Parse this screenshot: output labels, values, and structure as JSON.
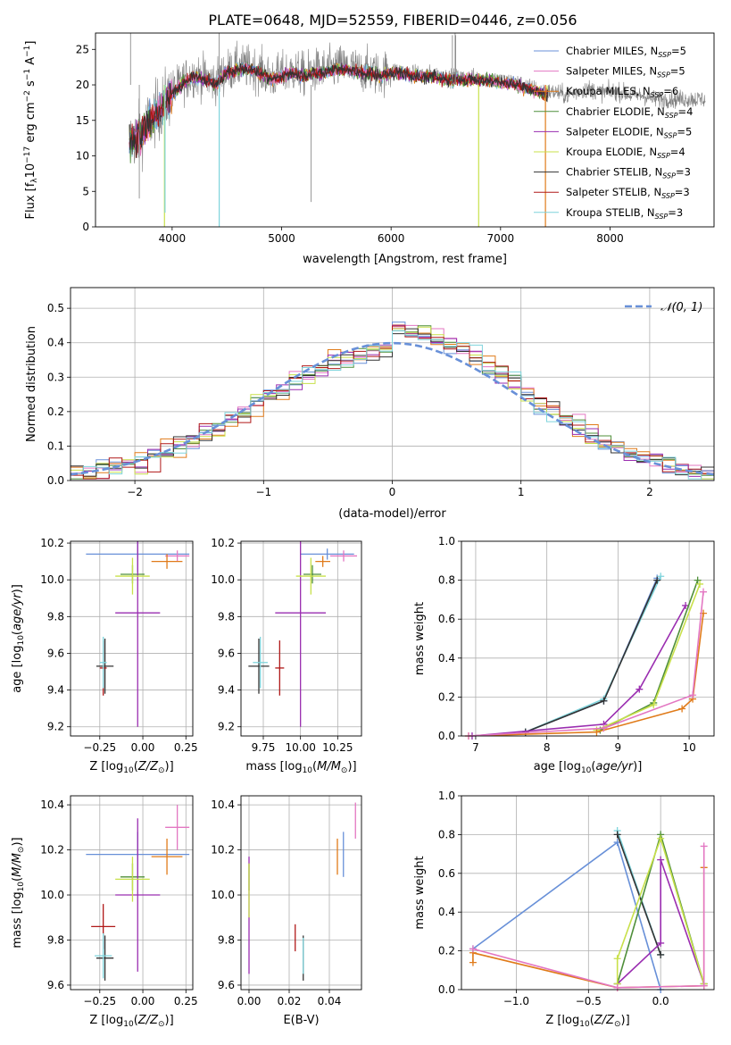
{
  "title": "PLATE=0648, MJD=52559, FIBERID=0446, z=0.056",
  "legend_spectrum": [
    {
      "label": "Chabrier MILES, N",
      "sub": "SSP",
      "suffix": "=5",
      "color": "#6890d8"
    },
    {
      "label": "Salpeter MILES, N",
      "sub": "SSP",
      "suffix": "=5",
      "color": "#e377c2"
    },
    {
      "label": "Kroupa MILES, N",
      "sub": "SSP",
      "suffix": "=6",
      "color": "#e07b1a"
    },
    {
      "label": "Chabrier ELODIE, N",
      "sub": "SSP",
      "suffix": "=4",
      "color": "#4f8f3a"
    },
    {
      "label": "Salpeter ELODIE, N",
      "sub": "SSP",
      "suffix": "=5",
      "color": "#9a2db0"
    },
    {
      "label": "Kroupa ELODIE, N",
      "sub": "SSP",
      "suffix": "=4",
      "color": "#c8e04a"
    },
    {
      "label": "Chabrier STELIB, N",
      "sub": "SSP",
      "suffix": "=3",
      "color": "#333333"
    },
    {
      "label": "Salpeter STELIB, N",
      "sub": "SSP",
      "suffix": "=3",
      "color": "#b01818"
    },
    {
      "label": "Kroupa STELIB, N",
      "sub": "SSP",
      "suffix": "=3",
      "color": "#7fd4dc"
    }
  ],
  "legend_normal": "𝒩(0, 1)",
  "chart_data": [
    {
      "id": "spectrum",
      "type": "line",
      "xlabel": "wavelength [Angstrom, rest frame]",
      "ylabel": "Flux [f_λ 10^-17 erg cm^-2 s^-1 A^-1]",
      "xlim": [
        3300,
        8950
      ],
      "ylim": [
        0,
        27.3
      ],
      "xticks": [
        4000,
        5000,
        6000,
        7000,
        8000
      ],
      "yticks": [
        0,
        5,
        10,
        15,
        20,
        25
      ],
      "data_wavelength": [
        3600,
        3700,
        3800,
        3900,
        4000,
        4100,
        4200,
        4300,
        4400,
        4500,
        4600,
        4700,
        4800,
        4900,
        5000,
        5100,
        5200,
        5300,
        5400,
        5500,
        5600,
        5700,
        5800,
        5900,
        6000,
        6100,
        6200,
        6300,
        6400,
        6500,
        6600,
        6700,
        6800,
        6900,
        7000,
        7100,
        7200,
        7300,
        7400,
        7500,
        7600,
        7700,
        7800,
        7900,
        8000,
        8100,
        8200,
        8300,
        8400,
        8500,
        8600,
        8800
      ],
      "data_flux": [
        12,
        13,
        15,
        17,
        19,
        20.5,
        21.5,
        21,
        20.5,
        22,
        22.5,
        22.5,
        22,
        21,
        21.5,
        22,
        21.5,
        22,
        22,
        22.5,
        22.5,
        22,
        22,
        21.5,
        22,
        22,
        21.5,
        21.5,
        21.5,
        21,
        21,
        21,
        21,
        21,
        20.5,
        20.5,
        20,
        19.5,
        19,
        19,
        18.5,
        19,
        19.5,
        19,
        19,
        19,
        18.5,
        18.5,
        18,
        18,
        18,
        18
      ],
      "grid": false
    },
    {
      "id": "residuals",
      "type": "histogram",
      "xlabel": "(data-model)/error",
      "ylabel": "Normed distribution",
      "xlim": [
        -2.5,
        2.5
      ],
      "ylim": [
        0,
        0.56
      ],
      "xticks": [
        -2,
        -1,
        0,
        1,
        2
      ],
      "yticks": [
        0.0,
        0.1,
        0.2,
        0.3,
        0.4,
        0.5
      ],
      "bin_width": 0.1,
      "reference_curve": "standard normal N(0,1)",
      "grid": true
    },
    {
      "id": "age_vs_Z",
      "type": "errorbar",
      "xlabel": "Z [log10(Z/Z☉)]",
      "ylabel": "age  [log10(age/yr)]",
      "xlim": [
        -0.42,
        0.29
      ],
      "ylim": [
        9.15,
        10.21
      ],
      "xticks": [
        -0.25,
        0.0,
        0.25
      ],
      "yticks": [
        9.2,
        9.4,
        9.6,
        9.8,
        10.0,
        10.2
      ],
      "points": [
        {
          "x": -0.03,
          "xerr": 0.3,
          "y": 10.14,
          "yerr": 0.1,
          "color": "#6890d8"
        },
        {
          "x": 0.2,
          "xerr": 0.07,
          "y": 10.13,
          "yerr": 0.03,
          "color": "#e377c2"
        },
        {
          "x": 0.14,
          "xerr": 0.09,
          "y": 10.1,
          "yerr": 0.04,
          "color": "#e07b1a"
        },
        {
          "x": -0.06,
          "xerr": 0.07,
          "y": 10.03,
          "yerr": 0.05,
          "color": "#4f8f3a"
        },
        {
          "x": -0.03,
          "xerr": 0.13,
          "y": 9.82,
          "yerr": 0.62,
          "color": "#9a2db0"
        },
        {
          "x": -0.06,
          "xerr": 0.1,
          "y": 10.02,
          "yerr": 0.1,
          "color": "#c8e04a"
        },
        {
          "x": -0.22,
          "xerr": 0.05,
          "y": 9.53,
          "yerr": 0.15,
          "color": "#333333"
        },
        {
          "x": -0.23,
          "xerr": 0.02,
          "y": 9.52,
          "yerr": 0.15,
          "color": "#b01818"
        },
        {
          "x": -0.23,
          "xerr": 0.02,
          "y": 9.55,
          "yerr": 0.14,
          "color": "#7fd4dc"
        }
      ],
      "grid": true
    },
    {
      "id": "age_vs_mass",
      "type": "errorbar",
      "xlabel": "mass [log10(M/M☉)]",
      "ylabel": "",
      "xlim": [
        9.6,
        10.41
      ],
      "ylim": [
        9.15,
        10.21
      ],
      "xticks": [
        9.75,
        10.0,
        10.25
      ],
      "yticks": [
        9.2,
        9.4,
        9.6,
        9.8,
        10.0,
        10.2
      ],
      "points": [
        {
          "x": 10.18,
          "xerr": 0.18,
          "y": 10.14,
          "yerr": 0.03,
          "color": "#6890d8"
        },
        {
          "x": 10.29,
          "xerr": 0.09,
          "y": 10.13,
          "yerr": 0.03,
          "color": "#e377c2"
        },
        {
          "x": 10.15,
          "xerr": 0.05,
          "y": 10.1,
          "yerr": 0.03,
          "color": "#e07b1a"
        },
        {
          "x": 10.08,
          "xerr": 0.06,
          "y": 10.03,
          "yerr": 0.05,
          "color": "#4f8f3a"
        },
        {
          "x": 10.0,
          "xerr": 0.17,
          "y": 9.82,
          "yerr": 0.62,
          "color": "#9a2db0"
        },
        {
          "x": 10.07,
          "xerr": 0.1,
          "y": 10.02,
          "yerr": 0.1,
          "color": "#c8e04a"
        },
        {
          "x": 9.72,
          "xerr": 0.07,
          "y": 9.53,
          "yerr": 0.15,
          "color": "#333333"
        },
        {
          "x": 9.86,
          "xerr": 0.03,
          "y": 9.52,
          "yerr": 0.15,
          "color": "#b01818"
        },
        {
          "x": 9.73,
          "xerr": 0.05,
          "y": 9.55,
          "yerr": 0.14,
          "color": "#7fd4dc"
        }
      ],
      "grid": true
    },
    {
      "id": "weight_vs_age",
      "type": "line",
      "xlabel": "age  [log10(age/yr)]",
      "ylabel": "mass weight",
      "xlim": [
        6.8,
        10.35
      ],
      "ylim": [
        0,
        1.0
      ],
      "xticks": [
        7,
        8,
        9,
        10
      ],
      "yticks": [
        0.0,
        0.2,
        0.4,
        0.6,
        0.8,
        1.0
      ],
      "series": [
        {
          "color": "#6890d8",
          "x": [
            7.7,
            8.8,
            9.55
          ],
          "y": [
            0.02,
            0.18,
            0.81
          ]
        },
        {
          "color": "#7fd4dc",
          "x": [
            7.7,
            8.8,
            9.6
          ],
          "y": [
            0.02,
            0.19,
            0.82
          ]
        },
        {
          "color": "#333333",
          "x": [
            7.7,
            8.8,
            9.55
          ],
          "y": [
            0.02,
            0.18,
            0.8
          ]
        },
        {
          "color": "#9a2db0",
          "x": [
            6.95,
            8.8,
            9.3,
            9.95
          ],
          "y": [
            0.0,
            0.06,
            0.24,
            0.67
          ]
        },
        {
          "color": "#4f8f3a",
          "x": [
            8.75,
            9.5,
            10.12
          ],
          "y": [
            0.03,
            0.17,
            0.8
          ]
        },
        {
          "color": "#c8e04a",
          "x": [
            8.7,
            9.5,
            10.15
          ],
          "y": [
            0.03,
            0.16,
            0.78
          ]
        },
        {
          "color": "#e07b1a",
          "x": [
            6.9,
            8.7,
            9.9,
            10.05,
            10.2
          ],
          "y": [
            0.0,
            0.02,
            0.14,
            0.19,
            0.63
          ]
        },
        {
          "color": "#e377c2",
          "x": [
            6.9,
            8.8,
            10.05,
            10.2
          ],
          "y": [
            0.0,
            0.04,
            0.21,
            0.74
          ]
        }
      ],
      "grid": true
    },
    {
      "id": "mass_vs_Z",
      "type": "errorbar",
      "xlabel": "Z [log10(Z/Z☉)]",
      "ylabel": "mass [log10(M/M☉)]",
      "xlim": [
        -0.42,
        0.29
      ],
      "ylim": [
        9.58,
        10.44
      ],
      "xticks": [
        -0.25,
        0.0,
        0.25
      ],
      "yticks": [
        9.6,
        9.8,
        10.0,
        10.2,
        10.4
      ],
      "points": [
        {
          "x": -0.03,
          "xerr": 0.3,
          "y": 10.18,
          "yerr": 0.1,
          "color": "#6890d8"
        },
        {
          "x": 0.2,
          "xerr": 0.07,
          "y": 10.3,
          "yerr": 0.1,
          "color": "#e377c2"
        },
        {
          "x": 0.14,
          "xerr": 0.09,
          "y": 10.17,
          "yerr": 0.08,
          "color": "#e07b1a"
        },
        {
          "x": -0.06,
          "xerr": 0.07,
          "y": 10.08,
          "yerr": 0.06,
          "color": "#4f8f3a"
        },
        {
          "x": -0.03,
          "xerr": 0.13,
          "y": 10.0,
          "yerr": 0.34,
          "color": "#9a2db0"
        },
        {
          "x": -0.06,
          "xerr": 0.1,
          "y": 10.07,
          "yerr": 0.1,
          "color": "#c8e04a"
        },
        {
          "x": -0.22,
          "xerr": 0.05,
          "y": 9.72,
          "yerr": 0.1,
          "color": "#333333"
        },
        {
          "x": -0.23,
          "xerr": 0.07,
          "y": 9.86,
          "yerr": 0.1,
          "color": "#b01818"
        },
        {
          "x": -0.23,
          "xerr": 0.05,
          "y": 9.73,
          "yerr": 0.1,
          "color": "#7fd4dc"
        }
      ],
      "grid": true
    },
    {
      "id": "mass_vs_ebv",
      "type": "errorbar",
      "xlabel": "E(B-V)",
      "ylabel": "",
      "xlim": [
        -0.004,
        0.056
      ],
      "ylim": [
        9.58,
        10.44
      ],
      "xticks": [
        0.0,
        0.02,
        0.04
      ],
      "yticks": [
        9.6,
        9.8,
        10.0,
        10.2,
        10.4
      ],
      "points": [
        {
          "x": 0.047,
          "y": 10.18,
          "yerr": 0.1,
          "color": "#6890d8"
        },
        {
          "x": 0.053,
          "y": 10.33,
          "yerr": 0.08,
          "color": "#e377c2"
        },
        {
          "x": 0.044,
          "y": 10.17,
          "yerr": 0.08,
          "color": "#e07b1a"
        },
        {
          "x": 0.0,
          "y": 10.08,
          "yerr": 0.06,
          "color": "#4f8f3a"
        },
        {
          "x": 0.0,
          "y": 9.91,
          "yerr": 0.26,
          "color": "#9a2db0"
        },
        {
          "x": 0.0,
          "y": 10.02,
          "yerr": 0.12,
          "color": "#c8e04a"
        },
        {
          "x": 0.027,
          "y": 9.72,
          "yerr": 0.1,
          "color": "#333333"
        },
        {
          "x": 0.023,
          "y": 9.81,
          "yerr": 0.06,
          "color": "#b01818"
        },
        {
          "x": 0.027,
          "y": 9.73,
          "yerr": 0.08,
          "color": "#7fd4dc"
        }
      ],
      "grid": true
    },
    {
      "id": "weight_vs_Z",
      "type": "line",
      "xlabel": "Z [log10(Z/Z☉)]",
      "ylabel": "mass weight",
      "xlim": [
        -1.38,
        0.37
      ],
      "ylim": [
        0,
        1.0
      ],
      "xticks": [
        -1.0,
        -0.5,
        0.0
      ],
      "yticks": [
        0.0,
        0.2,
        0.4,
        0.6,
        0.8,
        1.0
      ],
      "series": [
        {
          "color": "#6890d8",
          "x": [
            -1.3,
            -0.3,
            0.0
          ],
          "y": [
            0.21,
            0.76,
            0.0
          ]
        },
        {
          "color": "#7fd4dc",
          "x": [
            -0.3,
            0.0
          ],
          "y": [
            0.82,
            0.18
          ]
        },
        {
          "color": "#333333",
          "x": [
            -0.3,
            0.0
          ],
          "y": [
            0.8,
            0.18
          ]
        },
        {
          "color": "#9a2db0",
          "x": [
            -0.3,
            0.0,
            0.0,
            0.3
          ],
          "y": [
            0.03,
            0.24,
            0.67,
            0.03
          ]
        },
        {
          "color": "#4f8f3a",
          "x": [
            -0.3,
            0.0,
            0.3
          ],
          "y": [
            0.03,
            0.8,
            0.03
          ]
        },
        {
          "color": "#c8e04a",
          "x": [
            -0.3,
            -0.3,
            0.0,
            0.3
          ],
          "y": [
            0.03,
            0.16,
            0.78,
            0.03
          ]
        },
        {
          "color": "#e07b1a",
          "x": [
            -1.3,
            -1.3,
            -0.3,
            0.3,
            0.3
          ],
          "y": [
            0.14,
            0.19,
            0.01,
            0.02,
            0.63
          ]
        },
        {
          "color": "#e377c2",
          "x": [
            -1.3,
            -0.3,
            0.3,
            0.3
          ],
          "y": [
            0.21,
            0.01,
            0.02,
            0.74
          ]
        }
      ],
      "grid": true
    }
  ]
}
